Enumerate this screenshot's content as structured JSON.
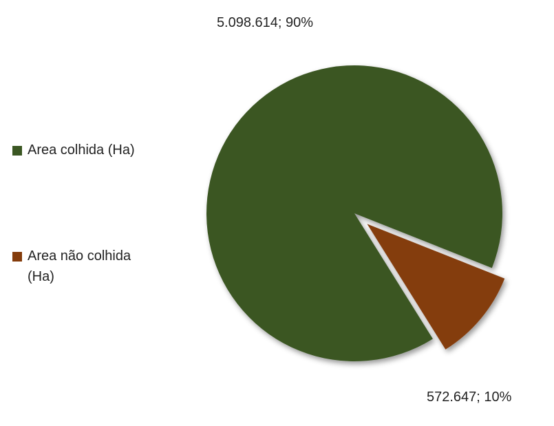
{
  "chart_data": {
    "type": "pie",
    "categories": [
      "Area colhida (Ha)",
      "Area não colhida (Ha)"
    ],
    "values": [
      5098614,
      572647
    ],
    "value_labels": [
      "5.098.614; 90%",
      "572.647; 10%"
    ],
    "colors": [
      "#3b5723",
      "#843c0c"
    ],
    "legend": "left"
  }
}
